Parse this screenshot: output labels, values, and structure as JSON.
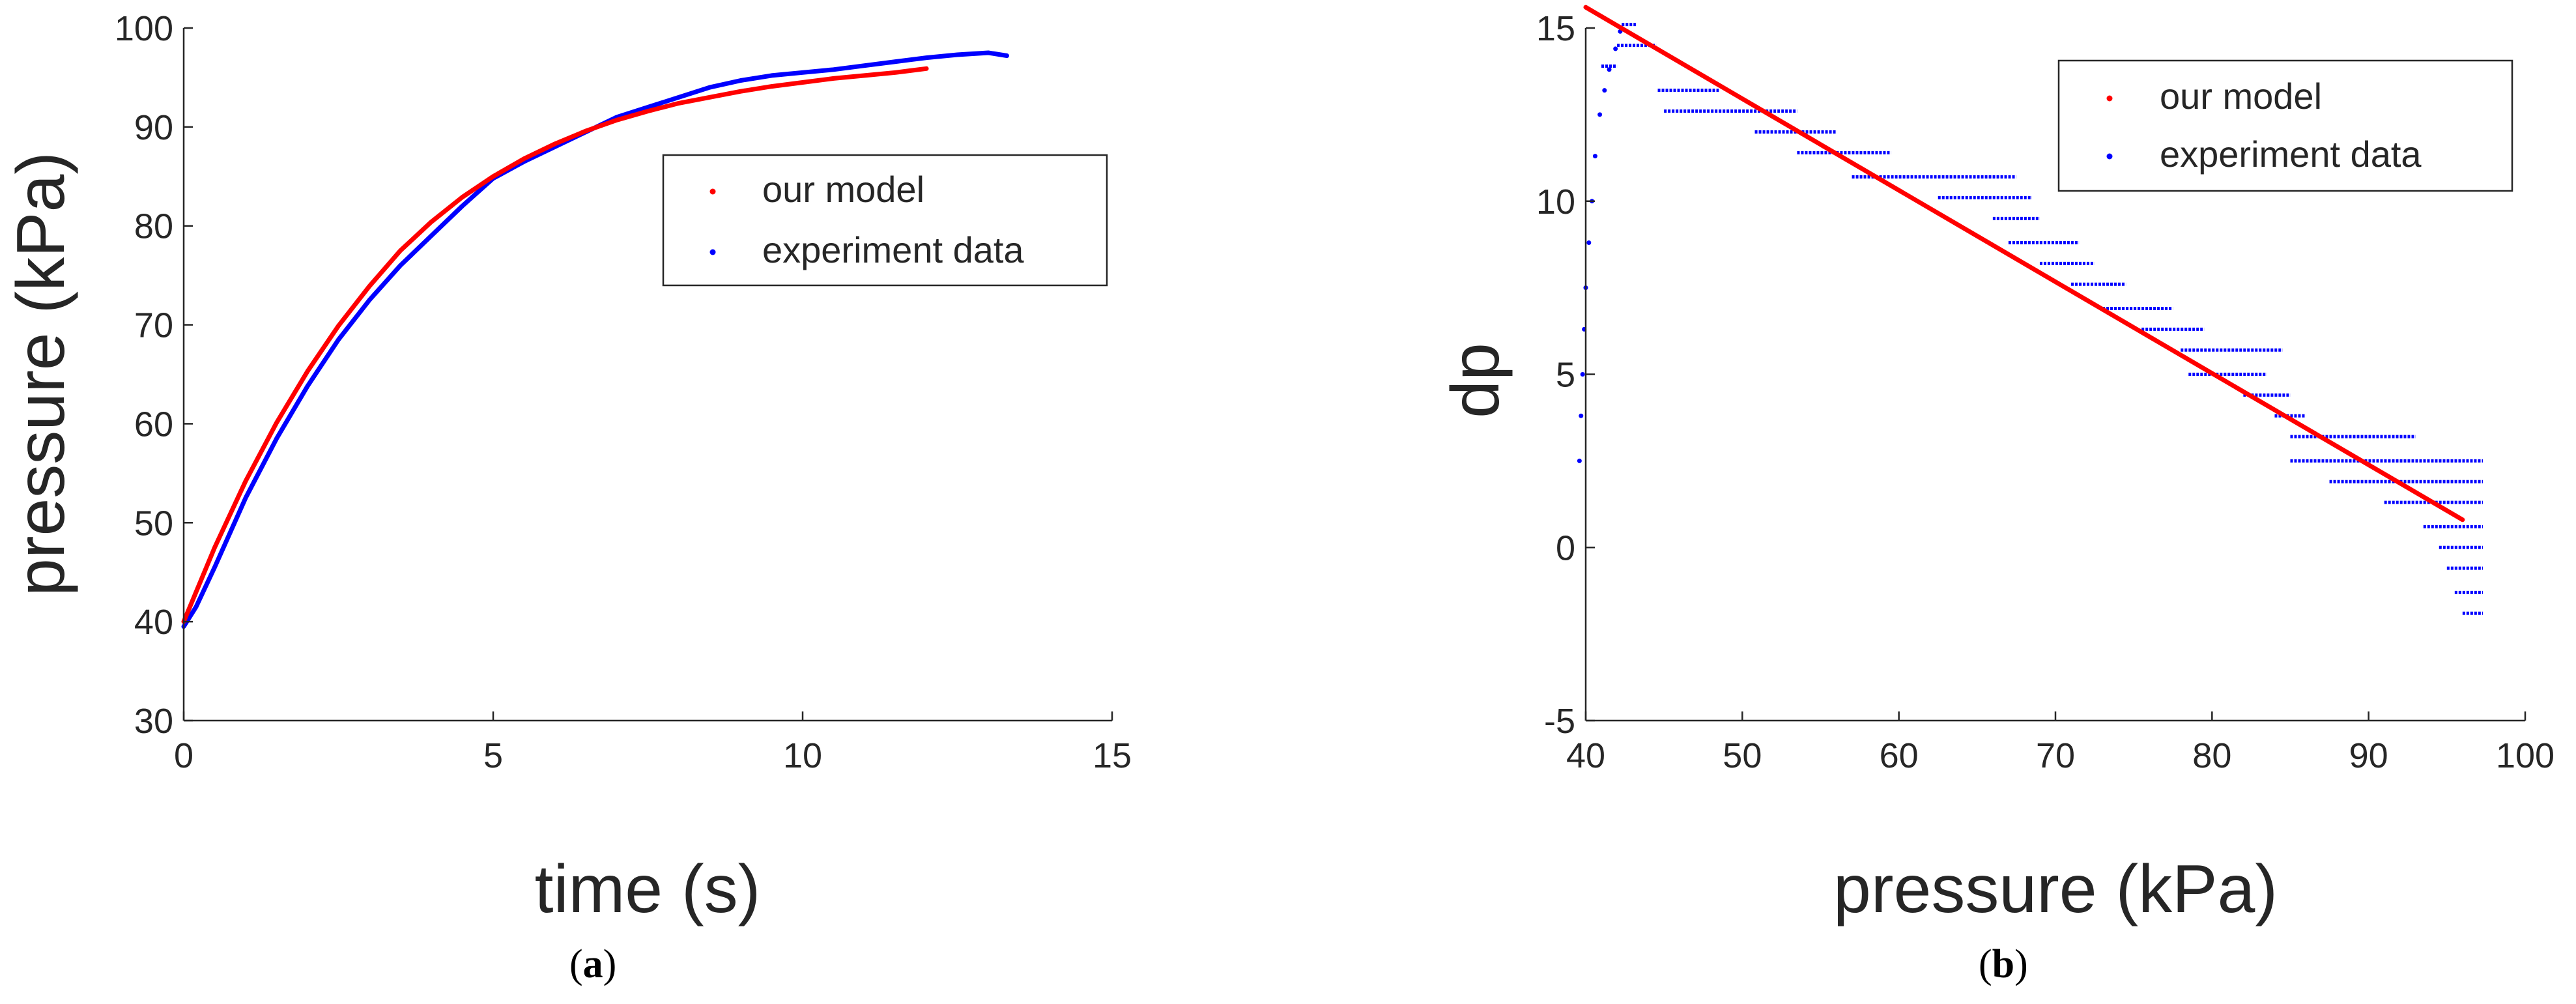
{
  "chart_data": [
    {
      "id": "a",
      "type": "line",
      "panel_label": "a",
      "xlabel": "time (s)",
      "ylabel": "pressure (kPa)",
      "xlim": [
        0,
        15
      ],
      "ylim": [
        30,
        100
      ],
      "xticks": [
        0,
        5,
        10,
        15
      ],
      "yticks": [
        30,
        40,
        50,
        60,
        70,
        80,
        90,
        100
      ],
      "grid": false,
      "legend_position": "top-right",
      "series": [
        {
          "name": "our model",
          "color": "#ff0000",
          "style": "line",
          "x": [
            0,
            0.5,
            1,
            1.5,
            2,
            2.5,
            3,
            3.5,
            4,
            4.5,
            5,
            5.5,
            6,
            6.5,
            7,
            7.5,
            8,
            8.5,
            9,
            9.5,
            10,
            10.5,
            11,
            11.5,
            12
          ],
          "y": [
            40.0,
            47.5,
            54.2,
            60.1,
            65.3,
            69.9,
            73.9,
            77.5,
            80.4,
            82.9,
            85.0,
            86.8,
            88.3,
            89.6,
            90.7,
            91.6,
            92.4,
            93.0,
            93.6,
            94.1,
            94.5,
            94.9,
            95.2,
            95.5,
            95.9
          ]
        },
        {
          "name": "experiment data",
          "color": "#0000ff",
          "style": "line",
          "x": [
            0,
            0.2,
            0.5,
            1,
            1.5,
            2,
            2.5,
            3,
            3.5,
            4,
            4.5,
            5,
            5.5,
            6,
            6.5,
            7,
            7.5,
            8,
            8.5,
            9,
            9.5,
            10,
            10.5,
            11,
            11.5,
            12,
            12.5,
            13,
            13.3
          ],
          "y": [
            39.5,
            41.5,
            45.5,
            52.5,
            58.5,
            63.8,
            68.5,
            72.5,
            76.0,
            79.0,
            82.0,
            84.8,
            86.5,
            88.0,
            89.5,
            91.0,
            92.0,
            93.0,
            94.0,
            94.7,
            95.2,
            95.5,
            95.8,
            96.2,
            96.6,
            97.0,
            97.3,
            97.5,
            97.2
          ]
        }
      ]
    },
    {
      "id": "b",
      "type": "scatter",
      "panel_label": "b",
      "xlabel": "pressure (kPa)",
      "ylabel": "dp",
      "xlim": [
        40,
        100
      ],
      "ylim": [
        -5,
        15
      ],
      "xticks": [
        40,
        50,
        60,
        70,
        80,
        90,
        100
      ],
      "yticks": [
        -5,
        0,
        5,
        10,
        15
      ],
      "grid": false,
      "legend_position": "top-right",
      "series": [
        {
          "name": "our model",
          "color": "#ff0000",
          "style": "line",
          "x": [
            40,
            96
          ],
          "y": [
            15.6,
            0.8
          ]
        },
        {
          "name": "experiment data",
          "color": "#0000ff",
          "style": "scatter-levels",
          "rise": {
            "x": [
              39.6,
              39.7,
              39.8,
              39.9,
              40.0,
              40.2,
              40.4,
              40.6,
              40.9,
              41.2,
              41.5,
              41.9,
              42.2
            ],
            "y": [
              2.5,
              3.8,
              5.0,
              6.3,
              7.5,
              8.8,
              10.0,
              11.3,
              12.5,
              13.2,
              13.8,
              14.4,
              14.9
            ]
          },
          "levels": [
            {
              "y": 15.1,
              "x0": 42.3,
              "x1": 43.2
            },
            {
              "y": 14.5,
              "x0": 42.0,
              "x1": 44.5
            },
            {
              "y": 13.9,
              "x0": 41.0,
              "x1": 42.0
            },
            {
              "y": 13.2,
              "x0": 44.6,
              "x1": 48.5
            },
            {
              "y": 12.6,
              "x0": 45.0,
              "x1": 53.5
            },
            {
              "y": 12.0,
              "x0": 50.8,
              "x1": 56.0
            },
            {
              "y": 11.4,
              "x0": 53.5,
              "x1": 59.5
            },
            {
              "y": 10.7,
              "x0": 57.0,
              "x1": 67.5
            },
            {
              "y": 10.1,
              "x0": 62.5,
              "x1": 68.5
            },
            {
              "y": 9.5,
              "x0": 66.0,
              "x1": 69.0
            },
            {
              "y": 8.8,
              "x0": 67.0,
              "x1": 71.5
            },
            {
              "y": 8.2,
              "x0": 69.0,
              "x1": 72.5
            },
            {
              "y": 7.6,
              "x0": 71.0,
              "x1": 74.5
            },
            {
              "y": 6.9,
              "x0": 73.0,
              "x1": 77.5
            },
            {
              "y": 6.3,
              "x0": 75.5,
              "x1": 79.5
            },
            {
              "y": 5.7,
              "x0": 78.0,
              "x1": 84.5
            },
            {
              "y": 5.0,
              "x0": 78.5,
              "x1": 83.5
            },
            {
              "y": 4.4,
              "x0": 82.0,
              "x1": 85.0
            },
            {
              "y": 3.8,
              "x0": 84.0,
              "x1": 86.0
            },
            {
              "y": 3.2,
              "x0": 85.0,
              "x1": 93.0
            },
            {
              "y": 2.5,
              "x0": 85.0,
              "x1": 97.3
            },
            {
              "y": 1.9,
              "x0": 87.5,
              "x1": 97.3
            },
            {
              "y": 1.3,
              "x0": 91.0,
              "x1": 97.3
            },
            {
              "y": 0.6,
              "x0": 93.5,
              "x1": 97.3
            },
            {
              "y": 0.0,
              "x0": 94.5,
              "x1": 97.3
            },
            {
              "y": -0.6,
              "x0": 95.0,
              "x1": 97.3
            },
            {
              "y": -1.3,
              "x0": 95.5,
              "x1": 97.3
            },
            {
              "y": -1.9,
              "x0": 96.0,
              "x1": 97.3
            }
          ]
        }
      ]
    }
  ]
}
